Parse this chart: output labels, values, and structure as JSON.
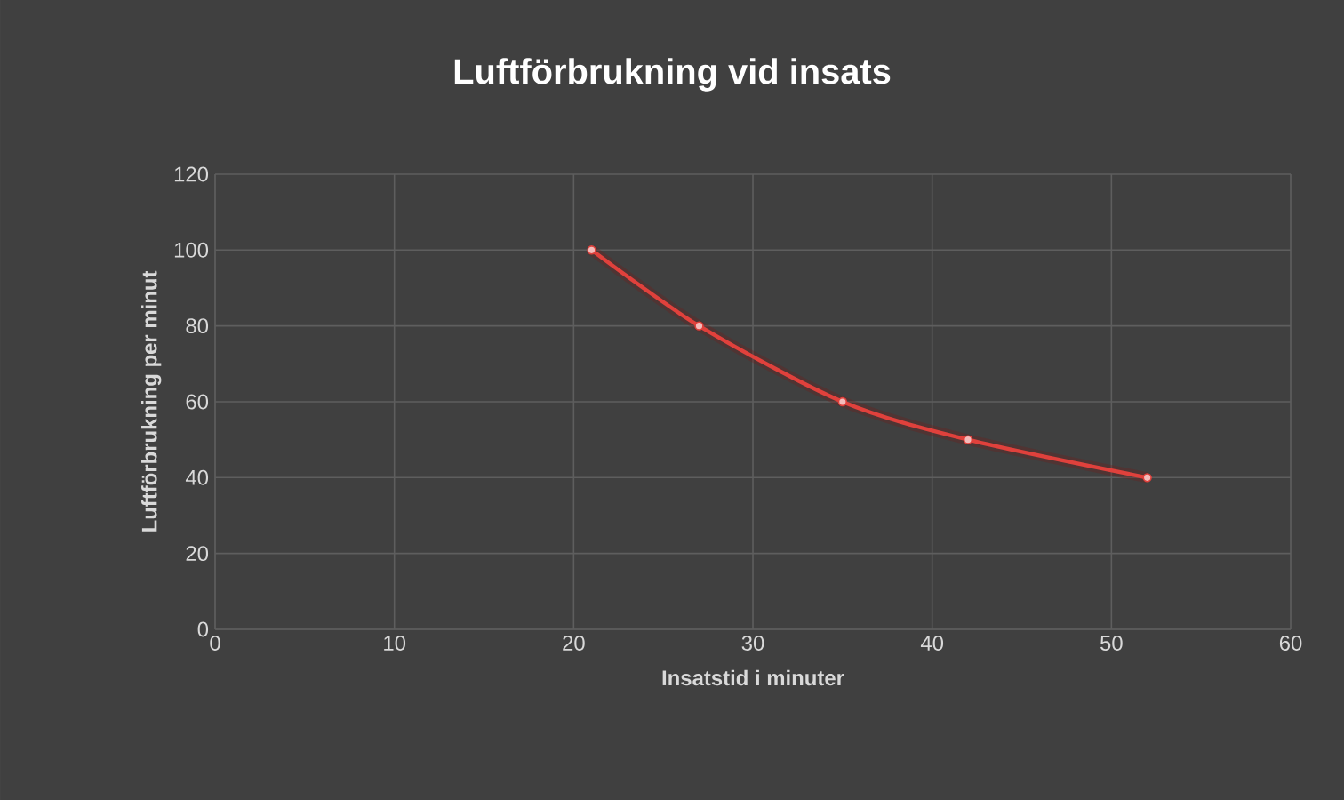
{
  "chart_data": {
    "type": "line",
    "title": "Luftförbrukning vid insats",
    "xlabel": "Insatstid i minuter",
    "ylabel": "Luftförbrukning per minut",
    "x": [
      21,
      27,
      35,
      42,
      52
    ],
    "series": [
      {
        "color": "#e0413c",
        "values": [
          100,
          80,
          60,
          50,
          40
        ]
      }
    ],
    "xlim": [
      0,
      60
    ],
    "xticks": [
      0,
      10,
      20,
      30,
      40,
      50,
      60
    ],
    "ylim": [
      0,
      120
    ],
    "yticks": [
      0,
      20,
      40,
      60,
      80,
      100,
      120
    ],
    "grid": true,
    "marker": "circle",
    "line_style": "solid"
  }
}
